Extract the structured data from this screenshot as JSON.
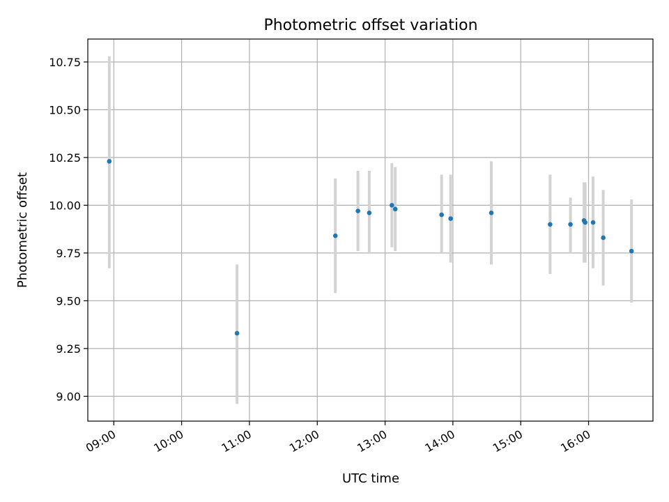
{
  "chart_data": {
    "type": "scatter",
    "title": "Photometric offset variation",
    "xlabel": "UTC time",
    "ylabel": "Photometric offset",
    "x_range": [
      "08:37",
      "16:57"
    ],
    "ylim": [
      8.87,
      10.87
    ],
    "grid": true,
    "x_ticks": [
      "09:00",
      "10:00",
      "11:00",
      "12:00",
      "13:00",
      "14:00",
      "15:00",
      "16:00"
    ],
    "y_ticks": [
      "9.00",
      "9.25",
      "9.50",
      "9.75",
      "10.00",
      "10.25",
      "10.50",
      "10.75"
    ],
    "colors": {
      "point": "#1f77b4",
      "errorbar": "#d3d3d3",
      "grid": "#b0b0b0"
    },
    "series": [
      {
        "points": [
          {
            "x": "08:56",
            "y": 10.23,
            "ylo": 9.67,
            "yhi": 10.78
          },
          {
            "x": "10:49",
            "y": 9.33,
            "ylo": 8.96,
            "yhi": 9.69
          },
          {
            "x": "12:16",
            "y": 9.84,
            "ylo": 9.54,
            "yhi": 10.14
          },
          {
            "x": "12:36",
            "y": 9.97,
            "ylo": 9.76,
            "yhi": 10.18
          },
          {
            "x": "12:46",
            "y": 9.96,
            "ylo": 9.75,
            "yhi": 10.18
          },
          {
            "x": "13:06",
            "y": 10.0,
            "ylo": 9.78,
            "yhi": 10.22
          },
          {
            "x": "13:09",
            "y": 9.98,
            "ylo": 9.76,
            "yhi": 10.2
          },
          {
            "x": "13:50",
            "y": 9.95,
            "ylo": 9.75,
            "yhi": 10.16
          },
          {
            "x": "13:58",
            "y": 9.93,
            "ylo": 9.7,
            "yhi": 10.16
          },
          {
            "x": "14:34",
            "y": 9.96,
            "ylo": 9.69,
            "yhi": 10.23
          },
          {
            "x": "15:26",
            "y": 9.9,
            "ylo": 9.64,
            "yhi": 10.16
          },
          {
            "x": "15:44",
            "y": 9.9,
            "ylo": 9.75,
            "yhi": 10.04
          },
          {
            "x": "15:56",
            "y": 9.92,
            "ylo": 9.7,
            "yhi": 10.12
          },
          {
            "x": "15:57",
            "y": 9.91,
            "ylo": 9.7,
            "yhi": 10.12
          },
          {
            "x": "16:04",
            "y": 9.91,
            "ylo": 9.67,
            "yhi": 10.15
          },
          {
            "x": "16:13",
            "y": 9.83,
            "ylo": 9.58,
            "yhi": 10.08
          },
          {
            "x": "16:38",
            "y": 9.76,
            "ylo": 9.49,
            "yhi": 10.03
          }
        ]
      }
    ]
  }
}
